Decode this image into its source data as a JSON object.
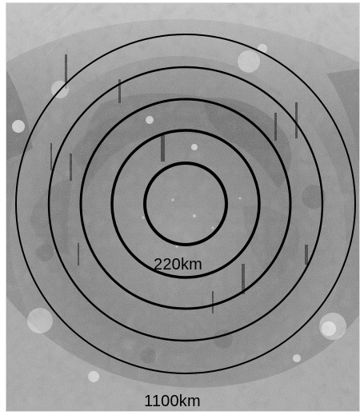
{
  "colors": {
    "ring": "#000000",
    "label": "#000000",
    "background": "#ffffff"
  },
  "labels": {
    "inner_ring": "220km",
    "outer_ring": "1100km"
  }
}
